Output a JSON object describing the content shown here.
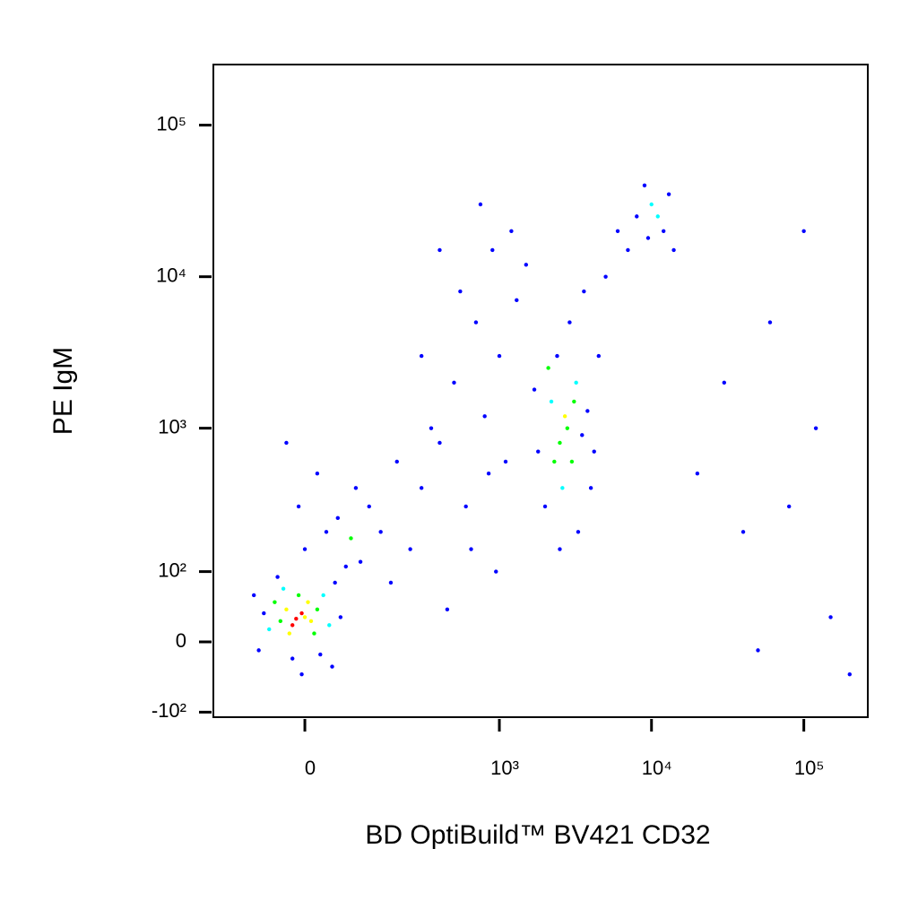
{
  "chart_data": {
    "type": "scatter",
    "x_label": "BD OptiBuild™ BV421 CD32",
    "y_label": "PE IgM",
    "xscale": "asinh",
    "x_asinh_cofactor": 106,
    "yscale": "asinh",
    "y_asinh_cofactor": 78,
    "xlim": [
      -198,
      263000
    ],
    "ylim": [
      -110,
      251000
    ],
    "xticks": [
      0,
      {
        "value": 1000,
        "label": "10³"
      },
      {
        "value": 10000,
        "label": "10⁴"
      },
      {
        "value": 100000,
        "label": "10⁵"
      }
    ],
    "yticks": [
      {
        "value": -100,
        "label": "-10²"
      },
      0,
      {
        "value": 100,
        "label": "10²"
      },
      {
        "value": 1000,
        "label": "10³"
      },
      {
        "value": 10000,
        "label": "10⁴"
      },
      {
        "value": 100000,
        "label": "10⁵"
      }
    ],
    "x": [
      -14,
      -5,
      -20,
      0,
      -30,
      10,
      -25,
      5,
      -40,
      20,
      -10,
      15,
      -50,
      30,
      -60,
      -35,
      40,
      -70,
      50,
      -80,
      60,
      -20,
      25,
      70,
      -45,
      0,
      35,
      -10,
      80,
      55,
      100,
      -90,
      -5,
      45,
      120,
      90,
      20,
      150,
      -30,
      200,
      250,
      300,
      180,
      400,
      500,
      600,
      700,
      800,
      900,
      1000,
      1100,
      1200,
      450,
      350,
      550,
      650,
      750,
      850,
      1300,
      950,
      400,
      300,
      1500,
      2500,
      2800,
      3000,
      2200,
      3200,
      2600,
      3500,
      2000,
      2400,
      3800,
      1800,
      2900,
      4000,
      3300,
      2100,
      2700,
      3100,
      4500,
      1700,
      2300,
      3600,
      5000,
      2500,
      4200,
      8000,
      10000,
      12000,
      9000,
      7000,
      13000,
      11000,
      6000,
      14000,
      9500,
      30000,
      60000,
      100000,
      40000,
      120000,
      200000,
      50000,
      80000,
      20000,
      150000
    ],
    "y": [
      28,
      35,
      20,
      30,
      40,
      25,
      10,
      50,
      25,
      40,
      60,
      10,
      50,
      60,
      15,
      70,
      20,
      35,
      80,
      -10,
      30,
      -20,
      -15,
      110,
      90,
      150,
      200,
      300,
      180,
      250,
      120,
      60,
      -40,
      -30,
      300,
      400,
      500,
      200,
      800,
      600,
      150,
      400,
      80,
      800,
      2000,
      300,
      5000,
      1200,
      15000,
      3000,
      600,
      20000,
      40,
      1000,
      8000,
      150,
      30000,
      500,
      7000,
      100,
      15000,
      3000,
      12000,
      800,
      1000,
      600,
      1500,
      2000,
      400,
      900,
      300,
      3000,
      1300,
      700,
      5000,
      400,
      200,
      2500,
      1200,
      1500,
      3000,
      1800,
      600,
      8000,
      10000,
      150,
      700,
      25000,
      30000,
      20000,
      40000,
      15000,
      35000,
      25000,
      20000,
      15000,
      18000,
      2000,
      5000,
      20000,
      200,
      1000,
      -40,
      -10,
      300,
      500,
      30
    ],
    "colors": [
      "#ff0000",
      "#ff0000",
      "#ff0000",
      "#ffff00",
      "#ffff00",
      "#ffff00",
      "#ffff00",
      "#ffff00",
      "#00ff00",
      "#00ff00",
      "#00ff00",
      "#00ff00",
      "#00ff00",
      "#00ffff",
      "#00ffff",
      "#00ffff",
      "#00ffff",
      "#0000ff",
      "#0000ff",
      "#0000ff",
      "#0000ff",
      "#0000ff",
      "#0000ff",
      "#0000ff",
      "#0000ff",
      "#0000ff",
      "#0000ff",
      "#0000ff",
      "#00ff00",
      "#0000ff",
      "#0000ff",
      "#0000ff",
      "#0000ff",
      "#0000ff",
      "#0000ff",
      "#0000ff",
      "#0000ff",
      "#0000ff",
      "#0000ff",
      "#0000ff",
      "#0000ff",
      "#0000ff",
      "#0000ff",
      "#0000ff",
      "#0000ff",
      "#0000ff",
      "#0000ff",
      "#0000ff",
      "#0000ff",
      "#0000ff",
      "#0000ff",
      "#0000ff",
      "#0000ff",
      "#0000ff",
      "#0000ff",
      "#0000ff",
      "#0000ff",
      "#0000ff",
      "#0000ff",
      "#0000ff",
      "#0000ff",
      "#0000ff",
      "#0000ff",
      "#00ff00",
      "#00ff00",
      "#00ff00",
      "#00ffff",
      "#00ffff",
      "#00ffff",
      "#0000ff",
      "#0000ff",
      "#0000ff",
      "#0000ff",
      "#0000ff",
      "#0000ff",
      "#0000ff",
      "#0000ff",
      "#00ff00",
      "#ffff00",
      "#00ff00",
      "#0000ff",
      "#0000ff",
      "#00ff00",
      "#0000ff",
      "#0000ff",
      "#0000ff",
      "#0000ff",
      "#0000ff",
      "#00ffff",
      "#0000ff",
      "#0000ff",
      "#0000ff",
      "#0000ff",
      "#00ffff",
      "#0000ff",
      "#0000ff",
      "#0000ff",
      "#0000ff",
      "#0000ff",
      "#0000ff",
      "#0000ff",
      "#0000ff",
      "#0000ff",
      "#0000ff",
      "#0000ff",
      "#0000ff",
      "#0000ff"
    ]
  }
}
